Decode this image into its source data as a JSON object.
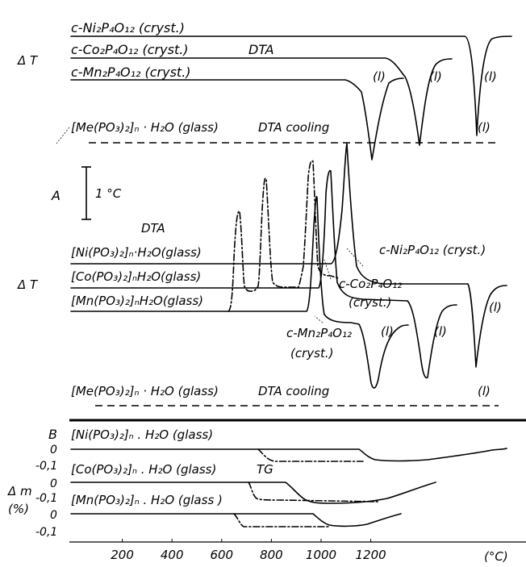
{
  "chart_data": [
    {
      "panel": "A",
      "type": "line",
      "x_unit": "°C",
      "xlim": [
        0,
        1400
      ],
      "ylabel": "Δ T",
      "panel_label": "A",
      "method_labels": [
        "DTA",
        "DTA cooling"
      ],
      "scale_bar_label": "1 °C",
      "series": [
        {
          "name": "c-Ni₂P₄O₁₂ (cryst.)",
          "style": "solid",
          "x": [
            0,
            1345,
            1355,
            1375,
            1395,
            1410,
            1420,
            1430,
            1450
          ],
          "y": [
            0,
            0,
            -0.35,
            -2.25,
            -0.6,
            -0.2,
            0.05,
            0.02,
            0.02
          ]
        },
        {
          "name": "c-Co₂P₄O₁₂ (cryst.)",
          "style": "solid",
          "x": [
            0,
            1075,
            1105,
            1128,
            1148,
            1165,
            1185,
            1220
          ],
          "y": [
            0,
            0,
            -0.4,
            -2.1,
            -0.4,
            -0.1,
            0.05,
            0.05
          ]
        },
        {
          "name": "c-Mn₂P₄O₁₂ (cryst.)",
          "style": "solid",
          "x": [
            0,
            955,
            975,
            1000,
            1018,
            1035,
            1060,
            1090
          ],
          "y": [
            0,
            0,
            -0.5,
            -1.8,
            -0.6,
            -0.25,
            0.08,
            0.08
          ]
        },
        {
          "name": "[Me(PO₃)₂]ₙ · H₂O (glass)",
          "style": "dashed",
          "x": [
            110,
            1420
          ],
          "y": [
            -1.5,
            -1.5
          ]
        },
        {
          "name": "[Ni(PO₃)₂]ₙ · H₂O (glass)",
          "style": "solid",
          "x": [
            0,
            875,
            888,
            905,
            918,
            930,
            945,
            970,
            1340,
            1348,
            1365,
            1375,
            1383,
            1395,
            1415
          ],
          "y": [
            0,
            0,
            0.9,
            2.6,
            -0.1,
            -0.7,
            -0.9,
            -0.95,
            -0.95,
            -1.2,
            -2.5,
            -2.0,
            -1.2,
            -0.95,
            -0.95
          ]
        },
        {
          "name": "[Co(PO₃)₂]ₙ · H₂O (glass)",
          "style": "solid",
          "x": [
            0,
            835,
            843,
            851,
            860,
            875,
            900,
            1080,
            1100,
            1120,
            1130,
            1145,
            1160,
            1175,
            1200
          ],
          "y": [
            0,
            0,
            0.9,
            2.2,
            0.5,
            -0.35,
            -0.55,
            -0.55,
            -0.85,
            -1.8,
            -1.55,
            -0.95,
            -0.6,
            -0.5,
            -0.5
          ]
        },
        {
          "name": "[Mn(PO₃)₂]ₙ · H₂O (glass)",
          "style": "solid",
          "x": [
            0,
            780,
            790,
            800,
            815,
            830,
            845,
            870,
            950,
            980,
            995,
            1003,
            1015,
            1030,
            1060,
            1085
          ],
          "y": [
            0,
            0,
            0.6,
            1.6,
            0.2,
            -0.3,
            -0.45,
            -0.5,
            -0.55,
            -1.1,
            -2.3,
            -2.6,
            -1.5,
            -0.8,
            -0.45,
            -0.45
          ]
        },
        {
          "name": "DTA cooling (Ni, Co, Mn glasses)",
          "style": "dash-dot",
          "x": [
            520,
            530,
            543,
            553,
            563,
            585,
            595,
            605,
            615,
            630,
            700,
            720,
            735,
            745,
            755,
            775,
            790,
            800
          ],
          "y": [
            0,
            0.1,
            0.8,
            1.7,
            0.1,
            0.02,
            0.35,
            2.1,
            0.3,
            0.05,
            0.05,
            0.4,
            1.4,
            1.75,
            0.3,
            0.1,
            0.2,
            0.05
          ]
        },
        {
          "name": "[Me(PO₃)₂]ₙ · H₂O (glass) DTA cooling",
          "style": "dashed",
          "x": [
            120,
            1420
          ],
          "y": [
            -3.15,
            -3.15
          ]
        }
      ],
      "curve_labels": [
        "(l)",
        "(l)",
        "(l)",
        "(l)",
        "(l)",
        "(l)",
        "(l)",
        "(l)",
        "(l)",
        "(l)"
      ],
      "annotations": [
        "c-Ni₂P₄O₁₂ (cryst.)",
        "c-Co₂P₄O₁₂",
        "(cryst.)",
        "c-Mn₂P₄O₁₂",
        "(cryst.)"
      ]
    },
    {
      "panel": "B",
      "type": "line",
      "panel_label": "B",
      "method_label": "TG",
      "ylabel": "Δ m",
      "yunit": "(%)",
      "xlabel": "(°C)",
      "x_ticks": [
        200,
        400,
        600,
        800,
        1000,
        1200
      ],
      "xlim": [
        0,
        1450
      ],
      "series": [
        {
          "name": "[Ni(PO₃)₂]ₙ · H₂O (glass)",
          "style": "solid",
          "x": [
            0,
            890,
            905,
            918,
            935,
            980,
            1080,
            1150,
            1220,
            1290,
            1350,
            1420
          ],
          "y": [
            0,
            0,
            -0.01,
            -0.05,
            -0.06,
            -0.06,
            -0.05,
            -0.04,
            -0.03,
            -0.02,
            -0.01,
            0
          ]
        },
        {
          "name": "[Ni(PO₃)₂]ₙ · H₂O (glass) DTA cooling",
          "style": "dash-dot",
          "x": [
            715,
            735,
            920
          ],
          "y": [
            0,
            -0.06,
            -0.06
          ]
        },
        {
          "name": "[Co(PO₃)₂]ₙ · H₂O (glass)",
          "style": "solid",
          "x": [
            0,
            660,
            680,
            700,
            720,
            750,
            840,
            900,
            960,
            1000,
            1060,
            1120,
            1190
          ],
          "y": [
            0,
            0,
            -0.02,
            -0.04,
            -0.06,
            -0.08,
            -0.09,
            -0.08,
            -0.06,
            -0.04,
            -0.02,
            -0.01,
            0
          ]
        },
        {
          "name": "[Co(PO₃)₂]ₙ · H₂O (glass) DTA cooling",
          "style": "dash-dot",
          "x": [
            590,
            605,
            625,
            700,
            1000
          ],
          "y": [
            0,
            -0.06,
            -0.08,
            -0.08,
            -0.09
          ]
        },
        {
          "name": "[Mn(PO₃)₂]ₙ · H₂O (glass)",
          "style": "solid",
          "x": [
            0,
            760,
            780,
            800,
            830,
            880,
            940,
            980,
            1020,
            1060,
            1090
          ],
          "y": [
            0,
            0,
            -0.02,
            -0.05,
            -0.08,
            -0.09,
            -0.08,
            -0.06,
            -0.03,
            -0.01,
            0
          ]
        },
        {
          "name": "[Mn(PO₃)₂]ₙ · H₂O (glass) DTA cooling",
          "style": "dash-dot",
          "x": [
            530,
            545,
            560,
            580,
            700,
            830
          ],
          "y": [
            0,
            -0.03,
            -0.06,
            -0.07,
            -0.07,
            -0.07
          ]
        }
      ]
    }
  ],
  "labels": {
    "ni_cryst": "c-Ni₂P₄O₁₂ (cryst.)",
    "co_cryst": "c-Co₂P₄O₁₂ (cryst.)",
    "mn_cryst": "c-Mn₂P₄O₁₂ (cryst.)",
    "dta_top": "DTA",
    "dta_mid": "DTA",
    "me_glass": "[Me(PO₃)₂]ₙ · H₂O (glass)",
    "dta_cooling": "DTA cooling",
    "panel_a": "A",
    "scale_bar": "1 °C",
    "delta_t": "Δ T",
    "ni_glass": "[Ni(PO₃)₂]ₙ·H₂O(glass)",
    "co_glass": "[Co(PO₃)₂]ₙH₂O(glass)",
    "mn_glass": "[Mn(PO₃)₂]ₙH₂O(glass)",
    "co_cryst_short": "c-Co₂P₄O₁₂",
    "cryst": "(cryst.)",
    "mn_cryst_short": "c-Mn₂P₄O₁₂",
    "liquid": "(l)",
    "panel_b": "B",
    "tg_ni": "[Ni(PO₃)₂]ₙ . H₂O (glass)",
    "tg_co": "[Co(PO₃)₂]ₙ . H₂O (glass)",
    "tg_mn": "[Mn(PO₃)₂]ₙ . H₂O (glass )",
    "tg": "TG",
    "delta_m": "Δ m",
    "percent": "(%)",
    "tick_0": "0",
    "tick_m01": "-0,1",
    "x_unit": "(°C)"
  }
}
